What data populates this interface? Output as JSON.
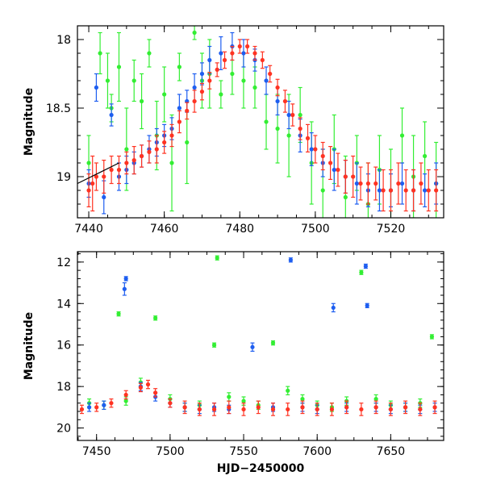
{
  "chart_data": [
    {
      "type": "scatter",
      "panel": "top",
      "xlabel": "",
      "ylabel": "Magnitude",
      "xlim": [
        7437,
        7534
      ],
      "ylim": [
        19.3,
        17.9
      ],
      "y_inverted": true,
      "grid": false,
      "x_ticks": [
        7440,
        7460,
        7480,
        7500,
        7520
      ],
      "y_ticks": [
        18,
        18.5,
        19
      ],
      "x_tick_labels": [
        "7440",
        "7460",
        "7480",
        "7500",
        "7520"
      ],
      "y_tick_labels": [
        "18",
        "18.5",
        "19"
      ],
      "series": [
        {
          "color": "#33ee33",
          "x": [
            7440,
            7443,
            7445,
            7446,
            7448,
            7450,
            7452,
            7454,
            7456,
            7458,
            7460,
            7462,
            7464,
            7466,
            7468,
            7470,
            7472,
            7475,
            7478,
            7481,
            7484,
            7487,
            7490,
            7493,
            7496,
            7499,
            7502,
            7505,
            7508,
            7511,
            7514,
            7517,
            7520,
            7523,
            7526,
            7529,
            7532
          ],
          "y": [
            18.9,
            18.1,
            18.3,
            18.5,
            18.2,
            18.8,
            18.3,
            18.45,
            18.1,
            18.7,
            18.4,
            18.9,
            18.2,
            18.75,
            17.95,
            18.3,
            18.25,
            18.4,
            18.25,
            18.3,
            18.35,
            18.6,
            18.65,
            18.7,
            18.55,
            18.9,
            19.1,
            18.8,
            19.15,
            18.9,
            19.2,
            18.95,
            19.1,
            18.7,
            19.0,
            18.85,
            19.05
          ],
          "yerr": [
            0.2,
            0.15,
            0.2,
            0.1,
            0.25,
            0.3,
            0.15,
            0.2,
            0.1,
            0.25,
            0.2,
            0.35,
            0.1,
            0.3,
            0.05,
            0.2,
            0.25,
            0.1,
            0.15,
            0.2,
            0.15,
            0.2,
            0.25,
            0.3,
            0.2,
            0.3,
            0.3,
            0.25,
            0.3,
            0.2,
            0.3,
            0.25,
            0.3,
            0.2,
            0.3,
            0.25,
            0.3
          ]
        },
        {
          "color": "#1e5ef0",
          "x": [
            7440,
            7442,
            7444,
            7446,
            7448,
            7450,
            7452,
            7454,
            7456,
            7458,
            7460,
            7462,
            7464,
            7466,
            7468,
            7470,
            7472,
            7475,
            7478,
            7481,
            7484,
            7487,
            7490,
            7493,
            7496,
            7499,
            7502,
            7505,
            7508,
            7511,
            7514,
            7517,
            7520,
            7523,
            7526,
            7529,
            7532
          ],
          "y": [
            19.05,
            18.35,
            19.15,
            18.55,
            19.0,
            18.95,
            18.9,
            18.85,
            18.8,
            18.75,
            18.7,
            18.65,
            18.5,
            18.45,
            18.35,
            18.25,
            18.15,
            18.1,
            18.05,
            18.1,
            18.15,
            18.3,
            18.45,
            18.55,
            18.7,
            18.8,
            18.9,
            18.95,
            19.0,
            19.05,
            19.1,
            19.1,
            19.1,
            19.05,
            19.1,
            19.1,
            19.05
          ],
          "yerr": [
            0.1,
            0.1,
            0.12,
            0.08,
            0.1,
            0.1,
            0.08,
            0.08,
            0.1,
            0.1,
            0.08,
            0.08,
            0.1,
            0.08,
            0.1,
            0.08,
            0.1,
            0.12,
            0.1,
            0.1,
            0.08,
            0.1,
            0.1,
            0.1,
            0.12,
            0.12,
            0.1,
            0.15,
            0.12,
            0.15,
            0.12,
            0.15,
            0.12,
            0.15,
            0.15,
            0.12,
            0.15
          ]
        },
        {
          "color": "#ff3322",
          "x": [
            7440,
            7441,
            7442,
            7444,
            7446,
            7448,
            7450,
            7452,
            7454,
            7456,
            7458,
            7460,
            7462,
            7464,
            7466,
            7468,
            7470,
            7472,
            7474,
            7476,
            7478,
            7480,
            7482,
            7484,
            7486,
            7488,
            7490,
            7492,
            7494,
            7496,
            7498,
            7500,
            7502,
            7504,
            7506,
            7508,
            7510,
            7512,
            7514,
            7516,
            7518,
            7520,
            7522,
            7524,
            7526,
            7528,
            7530,
            7532
          ],
          "y": [
            19.1,
            19.05,
            19.0,
            19.0,
            18.95,
            18.95,
            18.9,
            18.88,
            18.85,
            18.82,
            18.8,
            18.75,
            18.7,
            18.6,
            18.52,
            18.45,
            18.38,
            18.3,
            18.22,
            18.15,
            18.1,
            18.05,
            18.05,
            18.1,
            18.15,
            18.25,
            18.35,
            18.45,
            18.55,
            18.65,
            18.72,
            18.8,
            18.85,
            18.9,
            18.95,
            19.0,
            19.0,
            19.05,
            19.05,
            19.05,
            19.1,
            19.1,
            19.05,
            19.1,
            19.1,
            19.05,
            19.1,
            19.1
          ],
          "yerr": [
            0.12,
            0.2,
            0.1,
            0.12,
            0.1,
            0.1,
            0.08,
            0.1,
            0.08,
            0.08,
            0.1,
            0.08,
            0.08,
            0.08,
            0.06,
            0.08,
            0.06,
            0.06,
            0.05,
            0.06,
            0.05,
            0.05,
            0.05,
            0.05,
            0.06,
            0.06,
            0.06,
            0.08,
            0.08,
            0.08,
            0.1,
            0.1,
            0.1,
            0.12,
            0.12,
            0.12,
            0.15,
            0.12,
            0.15,
            0.12,
            0.15,
            0.15,
            0.15,
            0.15,
            0.15,
            0.15,
            0.15,
            0.15
          ]
        }
      ],
      "lines": [
        {
          "color": "#000000",
          "x": [
            7437,
            7448
          ],
          "y": [
            19.05,
            18.9
          ]
        }
      ]
    },
    {
      "type": "scatter",
      "panel": "bottom",
      "xlabel": "HJD−2450000",
      "ylabel": "Magnitude",
      "xlim": [
        7437,
        7686
      ],
      "ylim": [
        20.6,
        11.5
      ],
      "y_inverted": true,
      "grid": false,
      "x_ticks": [
        7450,
        7500,
        7550,
        7600,
        7650
      ],
      "y_ticks": [
        12,
        14,
        16,
        18,
        20
      ],
      "x_tick_labels": [
        "7450",
        "7500",
        "7550",
        "7600",
        "7650"
      ],
      "y_tick_labels": [
        "12",
        "14",
        "16",
        "18",
        "20"
      ],
      "series": [
        {
          "color": "#33ee33",
          "x": [
            7445,
            7455,
            7465,
            7470,
            7480,
            7490,
            7500,
            7510,
            7520,
            7530,
            7532,
            7540,
            7550,
            7560,
            7570,
            7580,
            7590,
            7600,
            7610,
            7620,
            7630,
            7640,
            7650,
            7660,
            7670,
            7678
          ],
          "y": [
            18.8,
            18.9,
            14.5,
            18.7,
            17.8,
            14.7,
            18.6,
            19.0,
            18.9,
            16.0,
            11.8,
            18.5,
            18.7,
            18.9,
            15.9,
            18.2,
            18.6,
            18.9,
            19.0,
            18.7,
            12.5,
            18.6,
            18.9,
            19.0,
            18.8,
            15.6
          ],
          "yerr": [
            0.2,
            0.2,
            0.1,
            0.2,
            0.2,
            0.1,
            0.2,
            0.2,
            0.2,
            0.1,
            0.1,
            0.2,
            0.2,
            0.2,
            0.1,
            0.2,
            0.2,
            0.2,
            0.2,
            0.2,
            0.1,
            0.2,
            0.2,
            0.2,
            0.2,
            0.1
          ]
        },
        {
          "color": "#1e5ef0",
          "x": [
            7445,
            7455,
            7469,
            7470,
            7480,
            7490,
            7500,
            7510,
            7520,
            7530,
            7540,
            7556,
            7570,
            7582,
            7590,
            7600,
            7611,
            7620,
            7633,
            7634,
            7640,
            7650,
            7660,
            7670,
            7680
          ],
          "y": [
            19.0,
            18.9,
            13.3,
            12.8,
            18.0,
            18.5,
            18.8,
            19.0,
            19.1,
            19.0,
            19.1,
            16.1,
            19.0,
            11.9,
            19.0,
            19.1,
            14.2,
            19.0,
            12.2,
            14.1,
            19.0,
            19.1,
            19.0,
            19.1,
            19.0
          ],
          "yerr": [
            0.2,
            0.2,
            0.3,
            0.1,
            0.2,
            0.2,
            0.2,
            0.2,
            0.2,
            0.2,
            0.2,
            0.2,
            0.2,
            0.1,
            0.2,
            0.2,
            0.2,
            0.2,
            0.1,
            0.1,
            0.2,
            0.2,
            0.2,
            0.2,
            0.2
          ]
        },
        {
          "color": "#ff3322",
          "x": [
            7440,
            7450,
            7460,
            7470,
            7480,
            7485,
            7490,
            7500,
            7510,
            7520,
            7530,
            7540,
            7550,
            7560,
            7570,
            7580,
            7590,
            7600,
            7610,
            7620,
            7630,
            7640,
            7650,
            7660,
            7670,
            7680
          ],
          "y": [
            19.1,
            19.0,
            18.8,
            18.4,
            18.05,
            17.9,
            18.3,
            18.8,
            19.0,
            19.1,
            19.1,
            19.0,
            19.1,
            19.0,
            19.1,
            19.1,
            19.0,
            19.1,
            19.1,
            19.0,
            19.1,
            19.0,
            19.1,
            19.0,
            19.1,
            19.0
          ],
          "yerr": [
            0.2,
            0.2,
            0.2,
            0.2,
            0.2,
            0.2,
            0.2,
            0.2,
            0.3,
            0.3,
            0.3,
            0.3,
            0.3,
            0.3,
            0.3,
            0.3,
            0.3,
            0.3,
            0.3,
            0.3,
            0.3,
            0.3,
            0.3,
            0.3,
            0.3,
            0.3
          ]
        }
      ]
    }
  ]
}
